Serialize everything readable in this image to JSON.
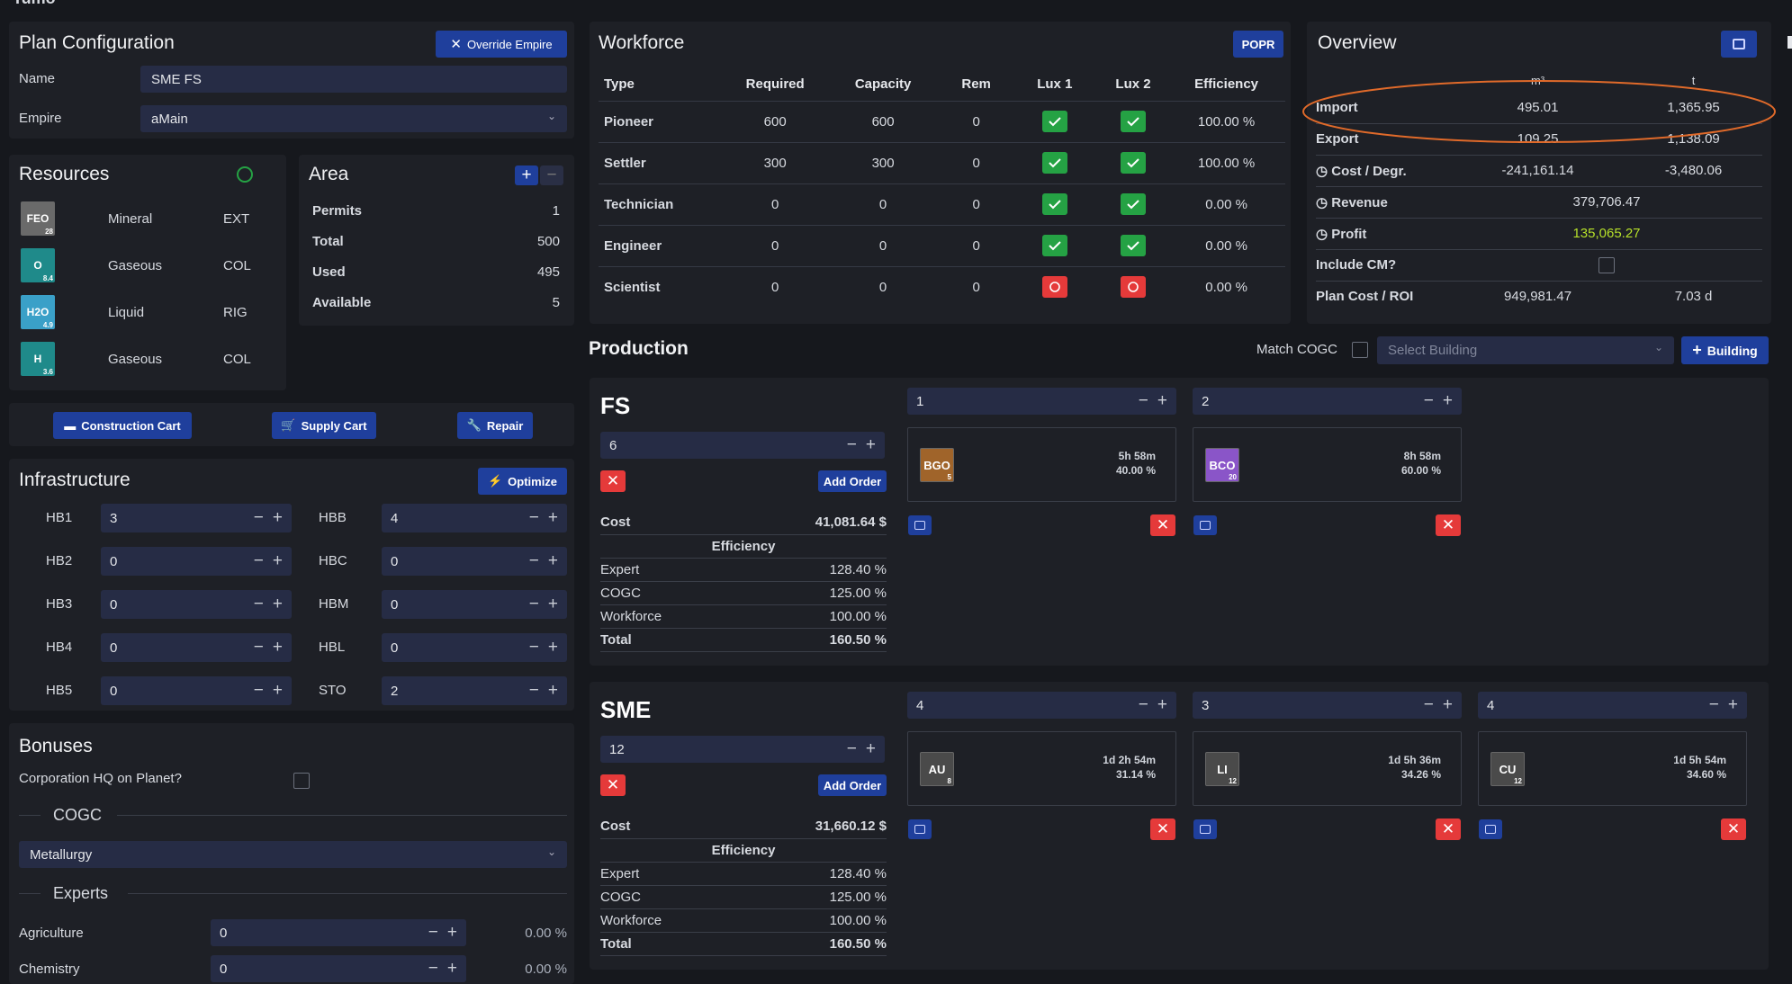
{
  "top_title": "Tumo",
  "plan": {
    "title": "Plan Configuration",
    "override_label": "Override Empire",
    "name_label": "Name",
    "name_value": "SME FS",
    "empire_label": "Empire",
    "empire_value": "aMain"
  },
  "resources": {
    "title": "Resources",
    "items": [
      {
        "ticker": "FEO",
        "num": "28",
        "type": "Mineral",
        "ext": "EXT",
        "color": "#6a6a6a"
      },
      {
        "ticker": "O",
        "num": "8.4",
        "type": "Gaseous",
        "ext": "COL",
        "color": "#1f8a8a"
      },
      {
        "ticker": "H2O",
        "num": "4.9",
        "type": "Liquid",
        "ext": "RIG",
        "color": "#3aa0c8"
      },
      {
        "ticker": "H",
        "num": "3.6",
        "type": "Gaseous",
        "ext": "COL",
        "color": "#1f8a8a"
      }
    ]
  },
  "area": {
    "title": "Area",
    "rows": [
      {
        "label": "Permits",
        "value": "1"
      },
      {
        "label": "Total",
        "value": "500"
      },
      {
        "label": "Used",
        "value": "495"
      },
      {
        "label": "Available",
        "value": "5"
      }
    ]
  },
  "carts": {
    "construction": "Construction Cart",
    "supply": "Supply Cart",
    "repair": "Repair"
  },
  "infrastructure": {
    "title": "Infrastructure",
    "optimize": "Optimize",
    "left": [
      {
        "label": "HB1",
        "value": "3"
      },
      {
        "label": "HB2",
        "value": "0"
      },
      {
        "label": "HB3",
        "value": "0"
      },
      {
        "label": "HB4",
        "value": "0"
      },
      {
        "label": "HB5",
        "value": "0"
      }
    ],
    "right": [
      {
        "label": "HBB",
        "value": "4"
      },
      {
        "label": "HBC",
        "value": "0"
      },
      {
        "label": "HBM",
        "value": "0"
      },
      {
        "label": "HBL",
        "value": "0"
      },
      {
        "label": "STO",
        "value": "2"
      }
    ]
  },
  "bonuses": {
    "title": "Bonuses",
    "hq_label": "Corporation HQ on Planet?",
    "cogc_title": "COGC",
    "cogc_value": "Metallurgy",
    "experts_title": "Experts",
    "experts": [
      {
        "label": "Agriculture",
        "value": "0",
        "pct": "0.00 %"
      },
      {
        "label": "Chemistry",
        "value": "0",
        "pct": "0.00 %"
      }
    ]
  },
  "workforce": {
    "title": "Workforce",
    "popr": "POPR",
    "headers": [
      "Type",
      "Required",
      "Capacity",
      "Rem",
      "Lux 1",
      "Lux 2",
      "Efficiency"
    ],
    "rows": [
      {
        "type": "Pioneer",
        "required": "600",
        "capacity": "600",
        "rem": "0",
        "lux1": true,
        "lux2": true,
        "eff": "100.00 %"
      },
      {
        "type": "Settler",
        "required": "300",
        "capacity": "300",
        "rem": "0",
        "lux1": true,
        "lux2": true,
        "eff": "100.00 %"
      },
      {
        "type": "Technician",
        "required": "0",
        "capacity": "0",
        "rem": "0",
        "lux1": true,
        "lux2": true,
        "eff": "0.00 %"
      },
      {
        "type": "Engineer",
        "required": "0",
        "capacity": "0",
        "rem": "0",
        "lux1": true,
        "lux2": true,
        "eff": "0.00 %"
      },
      {
        "type": "Scientist",
        "required": "0",
        "capacity": "0",
        "rem": "0",
        "lux1": false,
        "lux2": false,
        "eff": "0.00 %"
      }
    ]
  },
  "overview": {
    "title": "Overview",
    "col1": "m³",
    "col2": "t",
    "import": {
      "label": "Import",
      "v1": "495.01",
      "v2": "1,365.95"
    },
    "export": {
      "label": "Export",
      "v1": "109.25",
      "v2": "1,138.09"
    },
    "cost": {
      "label": "Cost / Degr.",
      "v1": "-241,161.14",
      "v2": "-3,480.06"
    },
    "revenue": {
      "label": "Revenue",
      "v": "379,706.47"
    },
    "profit": {
      "label": "Profit",
      "v": "135,065.27"
    },
    "include_cm": {
      "label": "Include CM?"
    },
    "plan_cost": {
      "label": "Plan Cost / ROI",
      "v1": "949,981.47",
      "v2": "7.03 d"
    }
  },
  "production": {
    "title": "Production",
    "match_cogc": "Match COGC",
    "select_placeholder": "Select Building",
    "add_building": "Building",
    "groups": [
      {
        "name": "FS",
        "count": "6",
        "add_order": "Add Order",
        "cost_label": "Cost",
        "cost": "41,081.64 $",
        "eff_title": "Efficiency",
        "eff_rows": [
          {
            "label": "Expert",
            "value": "128.40 %"
          },
          {
            "label": "COGC",
            "value": "125.00 %"
          },
          {
            "label": "Workforce",
            "value": "100.00 %"
          },
          {
            "label": "Total",
            "value": "160.50 %"
          }
        ],
        "orders": [
          {
            "count": "1",
            "ticker": "BGO",
            "num": "5",
            "color": "#a0642a",
            "time": "5h 58m",
            "pct": "40.00 %"
          },
          {
            "count": "2",
            "ticker": "BCO",
            "num": "20",
            "color": "#8a55c8",
            "time": "8h 58m",
            "pct": "60.00 %"
          }
        ]
      },
      {
        "name": "SME",
        "count": "12",
        "add_order": "Add Order",
        "cost_label": "Cost",
        "cost": "31,660.12 $",
        "eff_title": "Efficiency",
        "eff_rows": [
          {
            "label": "Expert",
            "value": "128.40 %"
          },
          {
            "label": "COGC",
            "value": "125.00 %"
          },
          {
            "label": "Workforce",
            "value": "100.00 %"
          },
          {
            "label": "Total",
            "value": "160.50 %"
          }
        ],
        "orders": [
          {
            "count": "4",
            "ticker": "AU",
            "num": "8",
            "color": "#4a4a4a",
            "time": "1d 2h 54m",
            "pct": "31.14 %"
          },
          {
            "count": "3",
            "ticker": "LI",
            "num": "12",
            "color": "#4a4a4a",
            "time": "1d 5h 36m",
            "pct": "34.26 %"
          },
          {
            "count": "4",
            "ticker": "CU",
            "num": "12",
            "color": "#4a4a4a",
            "time": "1d 5h 54m",
            "pct": "34.60 %"
          }
        ]
      }
    ]
  },
  "colors": {
    "accent": "#1f3f9c",
    "success": "#25a244",
    "danger": "#e53a3a",
    "profit": "#b6e02a",
    "highlight": "#e06a2a"
  }
}
